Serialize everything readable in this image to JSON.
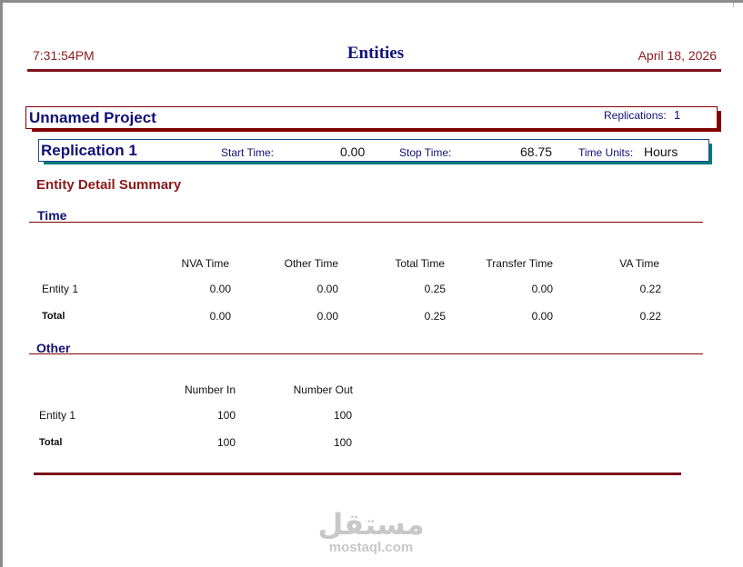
{
  "header": {
    "time": "7:31:54PM",
    "title": "Entities",
    "date": "April 18, 2026"
  },
  "project": {
    "name": "Unnamed Project",
    "replications_label": "Replications:",
    "replications_value": "1"
  },
  "replication": {
    "name": "Replication 1",
    "start_label": "Start Time:",
    "start_value": "0.00",
    "stop_label": "Stop Time:",
    "stop_value": "68.75",
    "units_label": "Time Units:",
    "units_value": "Hours"
  },
  "section_title": "Entity Detail Summary",
  "time_section": {
    "title": "Time",
    "columns": [
      "NVA Time",
      "Other Time",
      "Total Time",
      "Transfer Time",
      "VA Time"
    ],
    "rows": [
      {
        "label": "Entity 1",
        "values": [
          "0.00",
          "0.00",
          "0.25",
          "0.00",
          "0.22"
        ]
      },
      {
        "label": "Total",
        "values": [
          "0.00",
          "0.00",
          "0.25",
          "0.00",
          "0.22"
        ]
      }
    ]
  },
  "other_section": {
    "title": "Other",
    "columns": [
      "Number In",
      "Number Out"
    ],
    "rows": [
      {
        "label": "Entity 1",
        "values": [
          "100",
          "100"
        ]
      },
      {
        "label": "Total",
        "values": [
          "100",
          "100"
        ]
      }
    ]
  },
  "watermark": {
    "arabic": "مستقل",
    "latin": "mostaql.com"
  },
  "colors": {
    "maroon": "#8b1a1a",
    "navy": "#101077",
    "teal_shadow": "#007b7b"
  }
}
